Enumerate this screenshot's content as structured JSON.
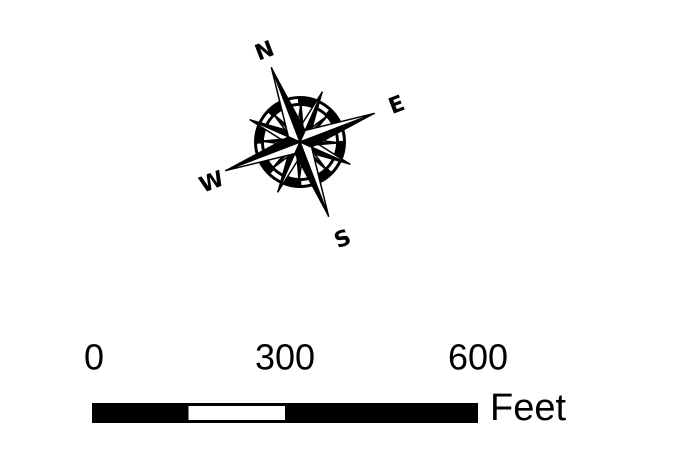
{
  "compass": {
    "labels": [
      "N",
      "E",
      "S",
      "W"
    ]
  },
  "scale_bar": {
    "ticks": [
      0,
      300,
      600
    ],
    "unit": "Feet"
  }
}
